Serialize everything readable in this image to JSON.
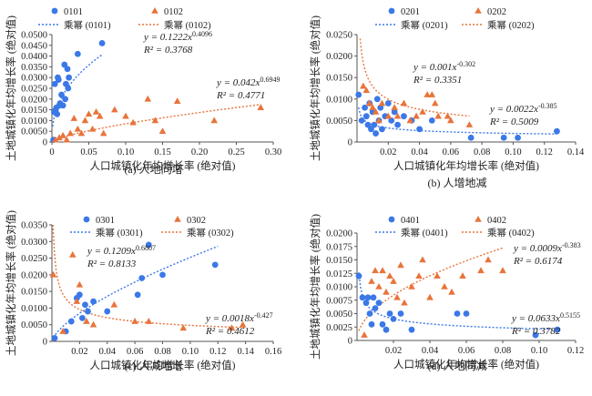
{
  "chart_data": [
    {
      "type": "scatter",
      "caption": "(a) 人地同增",
      "xlabel": "人口城镇化年均增长率 (绝对值)",
      "ylabel": "土地城镇化年均增长率 (绝对值)",
      "xlim": [
        0,
        0.3
      ],
      "ylim": [
        0,
        0.05
      ],
      "xticks": [
        "0",
        "0.05",
        "0.10",
        "0.15",
        "0.20",
        "0.25",
        "0.30"
      ],
      "yticks": [
        "0",
        "0.0050",
        "0.0100",
        "0.0150",
        "0.0200",
        "0.0250",
        "0.0300",
        "0.0350",
        "0.0400",
        "0.0450",
        "0.0500"
      ],
      "legend": [
        "0101",
        "0102",
        "乘幂 (0101)",
        "乘幂 (0102)"
      ],
      "series": [
        {
          "name": "0101",
          "marker": "circle",
          "color": "#3b78e7",
          "points": [
            [
              0.002,
              0.001
            ],
            [
              0.003,
              0.014
            ],
            [
              0.004,
              0.027
            ],
            [
              0.005,
              0.015
            ],
            [
              0.006,
              0.016
            ],
            [
              0.007,
              0.013
            ],
            [
              0.008,
              0.03
            ],
            [
              0.009,
              0.029
            ],
            [
              0.01,
              0.017
            ],
            [
              0.011,
              0.018
            ],
            [
              0.013,
              0.022
            ],
            [
              0.015,
              0.017
            ],
            [
              0.017,
              0.036
            ],
            [
              0.018,
              0.02
            ],
            [
              0.019,
              0.027
            ],
            [
              0.021,
              0.034
            ],
            [
              0.022,
              0.025
            ],
            [
              0.023,
              0.03
            ],
            [
              0.035,
              0.041
            ],
            [
              0.068,
              0.046
            ]
          ]
        },
        {
          "name": "0102",
          "marker": "triangle",
          "color": "#e8743b",
          "points": [
            [
              0.005,
              0.001
            ],
            [
              0.01,
              0.002
            ],
            [
              0.015,
              0.003
            ],
            [
              0.02,
              0.001
            ],
            [
              0.025,
              0.004
            ],
            [
              0.03,
              0.011
            ],
            [
              0.035,
              0.006
            ],
            [
              0.04,
              0.004
            ],
            [
              0.045,
              0.01
            ],
            [
              0.05,
              0.013
            ],
            [
              0.055,
              0.006
            ],
            [
              0.06,
              0.014
            ],
            [
              0.065,
              0.012
            ],
            [
              0.07,
              0.004
            ],
            [
              0.085,
              0.015
            ],
            [
              0.1,
              0.012
            ],
            [
              0.11,
              0.009
            ],
            [
              0.13,
              0.02
            ],
            [
              0.14,
              0.01
            ],
            [
              0.15,
              0.005
            ],
            [
              0.17,
              0.019
            ],
            [
              0.22,
              0.01
            ],
            [
              0.283,
              0.016
            ]
          ]
        }
      ],
      "fits": [
        {
          "name": "乘幂 (0101)",
          "a": 0.1222,
          "b": 0.4096,
          "xrange": [
            0.001,
            0.068
          ],
          "color": "#3b78e7",
          "label1": "y = 0.1222x^0.4096",
          "label2": "R² = 0.3768"
        },
        {
          "name": "乘幂 (0102)",
          "a": 0.042,
          "b": 0.6949,
          "xrange": [
            0.001,
            0.283
          ],
          "color": "#e8743b",
          "label1": "y = 0.042x^0.6949",
          "label2": "R² = 0.4771"
        }
      ]
    },
    {
      "type": "scatter",
      "caption": "(b) 人增地减",
      "xlabel": "人口城镇化年均增长率 (绝对值)",
      "ylabel": "土地城镇化年均增长率 (绝对值)",
      "xlim": [
        0,
        0.14
      ],
      "ylim": [
        0,
        0.025
      ],
      "xticks": [
        "0.02",
        "0.04",
        "0.06",
        "0.08",
        "0.10",
        "0.12",
        "0.14"
      ],
      "yticks": [
        "0",
        "0.0050",
        "0.0100",
        "0.0150",
        "0.0200",
        "0.0250"
      ],
      "legend": [
        "0201",
        "0202",
        "乘幂 (0201)",
        "乘幂 (0202)"
      ],
      "series": [
        {
          "name": "0201",
          "marker": "circle",
          "color": "#3b78e7",
          "points": [
            [
              0.001,
              0.011
            ],
            [
              0.003,
              0.005
            ],
            [
              0.005,
              0.008
            ],
            [
              0.006,
              0.006
            ],
            [
              0.007,
              0.004
            ],
            [
              0.008,
              0.009
            ],
            [
              0.009,
              0.003
            ],
            [
              0.01,
              0.007
            ],
            [
              0.011,
              0.004
            ],
            [
              0.012,
              0.002
            ],
            [
              0.013,
              0.01
            ],
            [
              0.014,
              0.005
            ],
            [
              0.015,
              0.008
            ],
            [
              0.016,
              0.003
            ],
            [
              0.018,
              0.006
            ],
            [
              0.02,
              0.009
            ],
            [
              0.022,
              0.005
            ],
            [
              0.024,
              0.007
            ],
            [
              0.026,
              0.004
            ],
            [
              0.03,
              0.006
            ],
            [
              0.035,
              0.005
            ],
            [
              0.04,
              0.003
            ],
            [
              0.048,
              0.005
            ],
            [
              0.073,
              0.001
            ],
            [
              0.094,
              0.001
            ],
            [
              0.103,
              0.001
            ],
            [
              0.128,
              0.0025
            ]
          ]
        },
        {
          "name": "0202",
          "marker": "triangle",
          "color": "#e8743b",
          "points": [
            [
              0.004,
              0.013
            ],
            [
              0.006,
              0.012
            ],
            [
              0.008,
              0.009
            ],
            [
              0.01,
              0.008
            ],
            [
              0.012,
              0.007
            ],
            [
              0.014,
              0.005
            ],
            [
              0.016,
              0.009
            ],
            [
              0.02,
              0.006
            ],
            [
              0.024,
              0.008
            ],
            [
              0.026,
              0.006
            ],
            [
              0.03,
              0.009
            ],
            [
              0.034,
              0.005
            ],
            [
              0.038,
              0.006
            ],
            [
              0.042,
              0.007
            ],
            [
              0.045,
              0.011
            ],
            [
              0.048,
              0.011
            ],
            [
              0.05,
              0.009
            ],
            [
              0.052,
              0.006
            ],
            [
              0.058,
              0.006
            ],
            [
              0.06,
              0.005
            ],
            [
              0.072,
              0.004
            ]
          ]
        }
      ],
      "fits": [
        {
          "name": "乘幂 (0201)",
          "a": 0.001,
          "b": -0.302,
          "xrange": [
            0.001,
            0.128
          ],
          "color": "#3b78e7",
          "label1": "y = 0.001x^-0.302",
          "label2": "R² = 0.3351"
        },
        {
          "name": "乘幂 (0202)",
          "a": 0.0022,
          "b": -0.385,
          "xrange": [
            0.002,
            0.072
          ],
          "color": "#e8743b",
          "label1": "y = 0.0022x^-0.385",
          "label2": "R² = 0.5009"
        }
      ]
    },
    {
      "type": "scatter",
      "caption": "(c) 人减地增",
      "xlabel": "人口城镇化年均增长率 (绝对值)",
      "ylabel": "土地城镇化年均增长率 (绝对值)",
      "xlim": [
        0,
        0.16
      ],
      "ylim": [
        0,
        0.035
      ],
      "xticks": [
        "0.02",
        "0.04",
        "0.06",
        "0.08",
        "0.10",
        "0.12",
        "0.14",
        "0.16"
      ],
      "yticks": [
        "0",
        "0.0050",
        "0.0100",
        "0.0150",
        "0.0200",
        "0.0250",
        "0.0300",
        "0.0350"
      ],
      "legend": [
        "0301",
        "0302",
        "乘幂 (0301)",
        "乘幂 (0302)"
      ],
      "series": [
        {
          "name": "0301",
          "marker": "circle",
          "color": "#3b78e7",
          "points": [
            [
              0.002,
              0.001
            ],
            [
              0.01,
              0.003
            ],
            [
              0.014,
              0.006
            ],
            [
              0.018,
              0.013
            ],
            [
              0.02,
              0.014
            ],
            [
              0.022,
              0.007
            ],
            [
              0.024,
              0.011
            ],
            [
              0.026,
              0.009
            ],
            [
              0.03,
              0.012
            ],
            [
              0.04,
              0.009
            ],
            [
              0.062,
              0.014
            ],
            [
              0.065,
              0.019
            ],
            [
              0.07,
              0.029
            ],
            [
              0.08,
              0.02
            ],
            [
              0.118,
              0.023
            ]
          ]
        },
        {
          "name": "0302",
          "marker": "triangle",
          "color": "#e8743b",
          "points": [
            [
              0.001,
              0.02
            ],
            [
              0.008,
              0.003
            ],
            [
              0.015,
              0.026
            ],
            [
              0.018,
              0.012
            ],
            [
              0.02,
              0.017
            ],
            [
              0.025,
              0.006
            ],
            [
              0.03,
              0.005
            ],
            [
              0.045,
              0.011
            ],
            [
              0.06,
              0.006
            ],
            [
              0.07,
              0.006
            ],
            [
              0.095,
              0.004
            ],
            [
              0.13,
              0.004
            ],
            [
              0.138,
              0.005
            ]
          ]
        }
      ],
      "fits": [
        {
          "name": "乘幂 (0301)",
          "a": 0.1209,
          "b": 0.6807,
          "xrange": [
            0.001,
            0.12
          ],
          "color": "#3b78e7",
          "label1": "y = 0.1209x^0.6807",
          "label2": "R² = 0.8133"
        },
        {
          "name": "乘幂 (0302)",
          "a": 0.0018,
          "b": -0.427,
          "xrange": [
            0.0007,
            0.14
          ],
          "color": "#e8743b",
          "label1": "y = 0.0018x^-0.427",
          "label2": "R² = 0.4612"
        }
      ]
    },
    {
      "type": "scatter",
      "caption": "(d) 人地同减",
      "xlabel": "人口城镇化年均增长率 (绝对值)",
      "ylabel": "土地城镇化年均增长率 (绝对值)",
      "xlim": [
        0,
        0.12
      ],
      "ylim": [
        0,
        0.02
      ],
      "xticks": [
        "0.02",
        "0.04",
        "0.06",
        "0.08",
        "0.10",
        "0.12"
      ],
      "yticks": [
        "0",
        "0.0025",
        "0.0050",
        "0.0075",
        "0.0100",
        "0.0125",
        "0.0150",
        "0.0175",
        "0.0200"
      ],
      "legend": [
        "0401",
        "0402",
        "乘幂 (0401)",
        "乘幂 (0402)"
      ],
      "series": [
        {
          "name": "0401",
          "marker": "circle",
          "color": "#3b78e7",
          "points": [
            [
              0.001,
              0.012
            ],
            [
              0.003,
              0.008
            ],
            [
              0.005,
              0.007
            ],
            [
              0.006,
              0.008
            ],
            [
              0.007,
              0.005
            ],
            [
              0.008,
              0.003
            ],
            [
              0.009,
              0.008
            ],
            [
              0.01,
              0.006
            ],
            [
              0.012,
              0.007
            ],
            [
              0.014,
              0.003
            ],
            [
              0.016,
              0.002
            ],
            [
              0.018,
              0.005
            ],
            [
              0.02,
              0.004
            ],
            [
              0.024,
              0.005
            ],
            [
              0.03,
              0.002
            ],
            [
              0.055,
              0.005
            ],
            [
              0.06,
              0.005
            ],
            [
              0.098,
              0.001
            ],
            [
              0.11,
              0.002
            ]
          ]
        },
        {
          "name": "0402",
          "marker": "triangle",
          "color": "#e8743b",
          "points": [
            [
              0.004,
              0.001
            ],
            [
              0.008,
              0.011
            ],
            [
              0.01,
              0.013
            ],
            [
              0.012,
              0.01
            ],
            [
              0.014,
              0.013
            ],
            [
              0.016,
              0.009
            ],
            [
              0.018,
              0.012
            ],
            [
              0.02,
              0.011
            ],
            [
              0.022,
              0.008
            ],
            [
              0.024,
              0.014
            ],
            [
              0.026,
              0.007
            ],
            [
              0.03,
              0.01
            ],
            [
              0.034,
              0.012
            ],
            [
              0.036,
              0.015
            ],
            [
              0.04,
              0.008
            ],
            [
              0.044,
              0.012
            ],
            [
              0.048,
              0.01
            ],
            [
              0.052,
              0.009
            ],
            [
              0.058,
              0.012
            ],
            [
              0.068,
              0.013
            ],
            [
              0.072,
              0.015
            ],
            [
              0.08,
              0.013
            ]
          ]
        }
      ],
      "fits": [
        {
          "name": "乘幂 (0401)",
          "a": 0.0009,
          "b": -0.383,
          "xrange": [
            0.001,
            0.11
          ],
          "color": "#3b78e7",
          "label1": "y = 0.0009x^-0.383",
          "label2": "R² = 0.6174"
        },
        {
          "name": "乘幂 (0402)",
          "a": 0.0633,
          "b": 0.5155,
          "xrange": [
            0.001,
            0.08
          ],
          "color": "#e8743b",
          "label1": "y = 0.0633x^0.5155",
          "label2": "R² = 0.3782"
        }
      ]
    }
  ]
}
